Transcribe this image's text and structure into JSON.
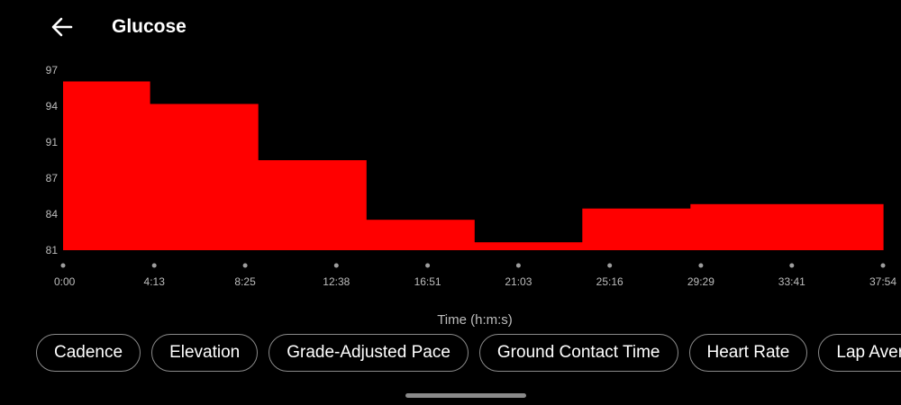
{
  "header": {
    "back_icon": "arrow-left-icon",
    "title": "Glucose"
  },
  "chart_data": {
    "type": "area",
    "step": true,
    "color": "#ff0000",
    "y_ticks": [
      "97",
      "94",
      "91",
      "87",
      "84",
      "81"
    ],
    "x_ticks": [
      "0:00",
      "4:13",
      "8:25",
      "12:38",
      "16:51",
      "21:03",
      "25:16",
      "29:29",
      "33:41",
      "37:54"
    ],
    "x_tick_seconds": [
      0,
      253,
      505,
      758,
      1011,
      1263,
      1516,
      1769,
      2021,
      2274
    ],
    "ylim": [
      81,
      97
    ],
    "xlim_seconds": [
      0,
      2274
    ],
    "xlabel": "Time (h:m:s)",
    "ylabel": "",
    "segments": [
      {
        "start": "0:00",
        "end": "4:00",
        "start_s": 0,
        "end_s": 240,
        "value": 96.0
      },
      {
        "start": "4:00",
        "end": "9:00",
        "start_s": 240,
        "end_s": 540,
        "value": 94.0
      },
      {
        "start": "9:00",
        "end": "14:00",
        "start_s": 540,
        "end_s": 840,
        "value": 89.0
      },
      {
        "start": "14:00",
        "end": "19:00",
        "start_s": 840,
        "end_s": 1140,
        "value": 83.7
      },
      {
        "start": "19:00",
        "end": "24:00",
        "start_s": 1140,
        "end_s": 1440,
        "value": 81.7
      },
      {
        "start": "24:00",
        "end": "29:00",
        "start_s": 1440,
        "end_s": 1740,
        "value": 84.7
      },
      {
        "start": "29:00",
        "end": "37:54",
        "start_s": 1740,
        "end_s": 2274,
        "value": 85.1
      }
    ],
    "grid": false,
    "legend": "none"
  },
  "metric_chips": [
    "Cadence",
    "Elevation",
    "Grade-Adjusted Pace",
    "Ground Contact Time",
    "Heart Rate",
    "Lap Average"
  ]
}
